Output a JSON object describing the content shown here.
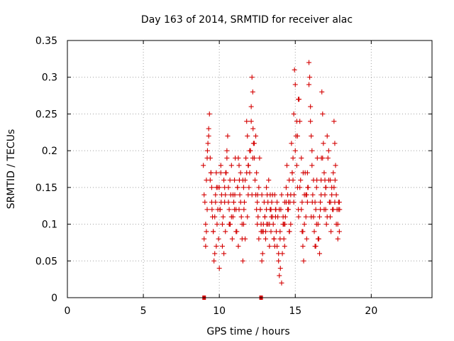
{
  "chart_data": {
    "type": "scatter",
    "title": "Day 163 of 2014, SRMTID for receiver alac",
    "xlabel": "GPS time / hours",
    "ylabel": "SRMTID / TECUs",
    "xlim": [
      0,
      24
    ],
    "ylim": [
      0,
      0.35
    ],
    "xticks": [
      0,
      5,
      10,
      15,
      20
    ],
    "xtick_labels": [
      "0",
      "5",
      "10",
      "15",
      "20"
    ],
    "yticks": [
      0,
      0.05,
      0.1,
      0.15,
      0.2,
      0.25,
      0.3,
      0.35
    ],
    "ytick_labels": [
      "0",
      "0.05",
      "0.1",
      "0.15",
      "0.2",
      "0.25",
      "0.3",
      "0.35"
    ],
    "grid": true,
    "marker": "+",
    "color": "#d40000",
    "series": [
      {
        "name": "SRMTID",
        "x": [
          8.95,
          9.0,
          9.05,
          9.1,
          9.15,
          9.2,
          9.25,
          9.3,
          9.35,
          9.4,
          9.45,
          9.5,
          9.55,
          9.6,
          9.65,
          9.7,
          9.75,
          9.8,
          9.85,
          9.9,
          9.95,
          10.0,
          10.05,
          10.1,
          10.15,
          10.2,
          10.25,
          10.3,
          10.35,
          10.4,
          10.45,
          10.5,
          10.55,
          10.6,
          10.65,
          10.7,
          10.75,
          10.8,
          10.85,
          10.9,
          10.95,
          11.0,
          11.05,
          11.1,
          11.15,
          11.2,
          11.25,
          11.3,
          11.35,
          11.4,
          11.45,
          11.5,
          11.55,
          11.6,
          11.65,
          11.7,
          11.75,
          11.8,
          11.85,
          11.9,
          11.95,
          12.0,
          12.05,
          12.1,
          12.15,
          12.2,
          12.25,
          12.3,
          12.35,
          12.4,
          12.45,
          12.5,
          12.55,
          12.6,
          12.65,
          12.7,
          12.75,
          12.8,
          12.85,
          12.9,
          12.95,
          13.0,
          13.05,
          13.1,
          13.15,
          13.2,
          13.25,
          13.3,
          13.35,
          13.4,
          13.45,
          13.5,
          13.55,
          13.6,
          13.65,
          13.7,
          13.75,
          13.8,
          13.85,
          13.9,
          13.95,
          14.0,
          14.05,
          14.1,
          14.15,
          14.2,
          14.25,
          14.3,
          14.35,
          14.4,
          14.45,
          14.5,
          14.55,
          14.6,
          14.65,
          14.7,
          14.75,
          14.8,
          14.85,
          14.9,
          14.95,
          15.0,
          15.05,
          15.1,
          15.15,
          15.2,
          15.25,
          15.3,
          15.35,
          15.4,
          15.45,
          15.5,
          15.55,
          15.6,
          15.65,
          15.7,
          15.75,
          15.8,
          15.85,
          15.9,
          15.95,
          16.0,
          16.05,
          16.1,
          16.15,
          16.2,
          16.25,
          16.3,
          16.35,
          16.4,
          16.45,
          16.5,
          16.55,
          16.6,
          16.65,
          16.7,
          16.75,
          16.8,
          16.85,
          16.9,
          16.95,
          17.0,
          17.05,
          17.1,
          17.15,
          17.2,
          17.25,
          17.3,
          17.35,
          17.4,
          17.45,
          17.5,
          17.55,
          17.6,
          17.65,
          17.7,
          17.75,
          17.8,
          17.85,
          17.9,
          9.0,
          9.1,
          9.2,
          9.3,
          9.4,
          9.5,
          9.6,
          9.7,
          9.8,
          9.9,
          10.0,
          10.1,
          10.2,
          10.3,
          10.4,
          10.5,
          10.6,
          10.7,
          10.8,
          10.9,
          11.0,
          11.1,
          11.2,
          11.3,
          11.4,
          11.5,
          11.6,
          11.7,
          11.8,
          11.9,
          12.0,
          12.1,
          12.2,
          12.3,
          12.4,
          12.5,
          12.6,
          12.7,
          12.8,
          12.9,
          13.0,
          13.1,
          13.2,
          13.3,
          13.4,
          13.5,
          13.6,
          13.7,
          13.8,
          13.9,
          14.0,
          14.1,
          14.2,
          14.3,
          14.4,
          14.5,
          14.6,
          14.7,
          14.8,
          14.9,
          15.0,
          15.1,
          15.2,
          15.3,
          15.4,
          15.5,
          15.6,
          15.7,
          15.8,
          15.9,
          16.0,
          16.1,
          16.2,
          16.3,
          16.4,
          16.5,
          16.6,
          16.7,
          16.8,
          16.9,
          17.0,
          17.1,
          17.2,
          17.3,
          17.4,
          17.5,
          17.6,
          17.7,
          17.8,
          17.9,
          9.15,
          9.45,
          9.75,
          10.05,
          10.35,
          10.65,
          10.95,
          11.25,
          11.55,
          11.85,
          12.15,
          12.45,
          12.75,
          13.05,
          13.35,
          13.65,
          13.95,
          14.25,
          14.55,
          14.85,
          15.15,
          15.45,
          15.75,
          16.05,
          16.35,
          16.65,
          16.95,
          17.25,
          17.55,
          17.85,
          9.22,
          9.52,
          9.82,
          10.12,
          10.42,
          10.72,
          11.02,
          11.32,
          11.62,
          11.92,
          12.22,
          12.52,
          12.82,
          13.12,
          13.42,
          13.72,
          14.02,
          14.32,
          14.62,
          14.92,
          15.22,
          15.52,
          15.82,
          16.12,
          16.42,
          16.72,
          17.02,
          17.32,
          17.62,
          17.92
        ],
        "y": [
          0.18,
          0.08,
          0.13,
          0.07,
          0.16,
          0.12,
          0.21,
          0.23,
          0.25,
          0.19,
          0.17,
          0.15,
          0.11,
          0.09,
          0.05,
          0.06,
          0.13,
          0.17,
          0.1,
          0.15,
          0.08,
          0.04,
          0.12,
          0.18,
          0.14,
          0.07,
          0.11,
          0.16,
          0.13,
          0.09,
          0.17,
          0.2,
          0.22,
          0.15,
          0.12,
          0.1,
          0.14,
          0.18,
          0.08,
          0.11,
          0.13,
          0.16,
          0.19,
          0.12,
          0.09,
          0.15,
          0.07,
          0.12,
          0.14,
          0.17,
          0.11,
          0.08,
          0.05,
          0.1,
          0.13,
          0.16,
          0.19,
          0.24,
          0.22,
          0.18,
          0.15,
          0.17,
          0.2,
          0.26,
          0.3,
          0.28,
          0.21,
          0.19,
          0.16,
          0.22,
          0.17,
          0.13,
          0.11,
          0.15,
          0.19,
          0.12,
          0.09,
          0.14,
          0.06,
          0.1,
          0.13,
          0.11,
          0.08,
          0.12,
          0.14,
          0.1,
          0.16,
          0.07,
          0.12,
          0.09,
          0.13,
          0.11,
          0.1,
          0.08,
          0.14,
          0.12,
          0.09,
          0.07,
          0.11,
          0.05,
          0.03,
          0.09,
          0.12,
          0.14,
          0.06,
          0.1,
          0.08,
          0.13,
          0.11,
          0.15,
          0.18,
          0.14,
          0.12,
          0.16,
          0.13,
          0.1,
          0.21,
          0.17,
          0.19,
          0.25,
          0.31,
          0.29,
          0.22,
          0.18,
          0.15,
          0.12,
          0.27,
          0.24,
          0.16,
          0.19,
          0.13,
          0.09,
          0.05,
          0.14,
          0.17,
          0.11,
          0.08,
          0.13,
          0.15,
          0.32,
          0.3,
          0.26,
          0.22,
          0.18,
          0.14,
          0.11,
          0.09,
          0.07,
          0.12,
          0.15,
          0.19,
          0.1,
          0.08,
          0.06,
          0.13,
          0.16,
          0.28,
          0.25,
          0.21,
          0.17,
          0.14,
          0.12,
          0.1,
          0.22,
          0.19,
          0.16,
          0.13,
          0.11,
          0.09,
          0.15,
          0.12,
          0.17,
          0.24,
          0.21,
          0.18,
          0.14,
          0.12,
          0.1,
          0.13,
          0.09,
          0.14,
          0.1,
          0.19,
          0.22,
          0.16,
          0.13,
          0.09,
          0.11,
          0.07,
          0.12,
          0.15,
          0.17,
          0.1,
          0.06,
          0.14,
          0.19,
          0.13,
          0.16,
          0.11,
          0.14,
          0.12,
          0.09,
          0.15,
          0.18,
          0.13,
          0.1,
          0.15,
          0.08,
          0.17,
          0.14,
          0.2,
          0.24,
          0.19,
          0.21,
          0.14,
          0.1,
          0.08,
          0.12,
          0.05,
          0.09,
          0.11,
          0.15,
          0.13,
          0.1,
          0.12,
          0.14,
          0.08,
          0.11,
          0.13,
          0.06,
          0.08,
          0.02,
          0.11,
          0.07,
          0.13,
          0.12,
          0.09,
          0.14,
          0.17,
          0.13,
          0.2,
          0.24,
          0.27,
          0.15,
          0.12,
          0.07,
          0.1,
          0.14,
          0.17,
          0.29,
          0.24,
          0.2,
          0.16,
          0.13,
          0.1,
          0.08,
          0.11,
          0.14,
          0.19,
          0.12,
          0.15,
          0.11,
          0.2,
          0.16,
          0.14,
          0.12,
          0.13,
          0.1,
          0.08,
          0.13,
          0.09,
          0.17,
          0.14,
          0.12,
          0.15,
          0.1,
          0.13,
          0.19,
          0.16,
          0.11,
          0.14,
          0.12,
          0.1,
          0.09,
          0.14,
          0.07,
          0.12,
          0.1,
          0.13,
          0.16,
          0.22,
          0.09,
          0.14,
          0.11,
          0.07,
          0.12,
          0.16,
          0.13,
          0.15,
          0.12,
          0.2,
          0.12,
          0.15,
          0.13,
          0.17,
          0.1,
          0.14,
          0.16,
          0.12,
          0.18,
          0.23,
          0.14,
          0.09,
          0.1,
          0.11,
          0.12,
          0.04,
          0.1,
          0.09,
          0.14,
          0.11,
          0.17,
          0.15,
          0.13,
          0.16,
          0.19,
          0.15,
          0.13,
          0.16,
          0.12
        ]
      },
      {
        "name": "zero-markers",
        "x": [
          9.0,
          12.75
        ],
        "y": [
          0,
          0
        ]
      }
    ]
  }
}
